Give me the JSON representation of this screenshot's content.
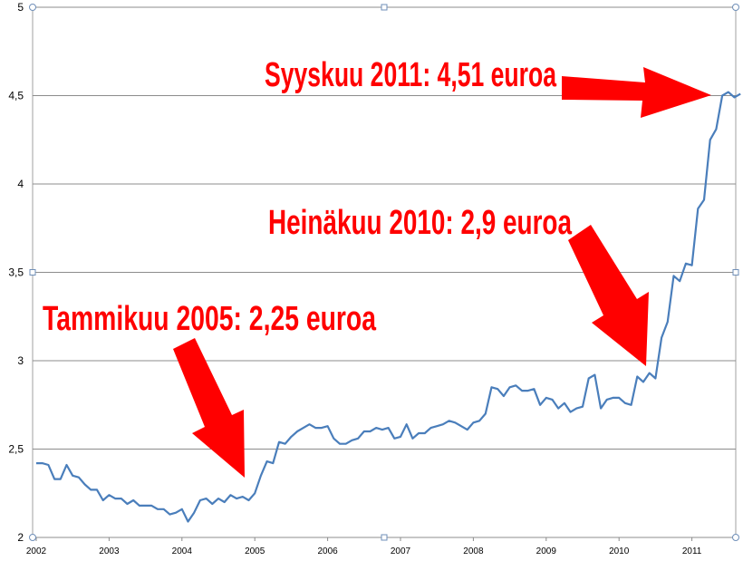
{
  "chart_data": {
    "type": "line",
    "title": "",
    "xlabel": "",
    "ylabel": "",
    "x_ticks": [
      "2002",
      "2003",
      "2004",
      "2005",
      "2006",
      "2007",
      "2008",
      "2009",
      "2010",
      "2011"
    ],
    "y_ticks": [
      "2",
      "2,5",
      "3",
      "3,5",
      "4",
      "4,5",
      "5"
    ],
    "xlim": [
      "2002-01",
      "2011-09"
    ],
    "ylim": [
      2,
      5
    ],
    "grid": true,
    "line_color": "#4a7ebb",
    "annotation_color": "#ff0000",
    "series": [
      {
        "x": [
          "2002-01",
          "2002-02",
          "2002-03",
          "2002-04",
          "2002-05",
          "2002-06",
          "2002-07",
          "2002-08",
          "2002-09",
          "2002-10",
          "2002-11",
          "2002-12",
          "2003-01",
          "2003-02",
          "2003-03",
          "2003-04",
          "2003-05",
          "2003-06",
          "2003-07",
          "2003-08",
          "2003-09",
          "2003-10",
          "2003-11",
          "2003-12",
          "2004-01",
          "2004-02",
          "2004-03",
          "2004-04",
          "2004-05",
          "2004-06",
          "2004-07",
          "2004-08",
          "2004-09",
          "2004-10",
          "2004-11",
          "2004-12",
          "2005-01",
          "2005-02",
          "2005-03",
          "2005-04",
          "2005-05",
          "2005-06",
          "2005-07",
          "2005-08",
          "2005-09",
          "2005-10",
          "2005-11",
          "2005-12",
          "2006-01",
          "2006-02",
          "2006-03",
          "2006-04",
          "2006-05",
          "2006-06",
          "2006-07",
          "2006-08",
          "2006-09",
          "2006-10",
          "2006-11",
          "2006-12",
          "2007-01",
          "2007-02",
          "2007-03",
          "2007-04",
          "2007-05",
          "2007-06",
          "2007-07",
          "2007-08",
          "2007-09",
          "2007-10",
          "2007-11",
          "2007-12",
          "2008-01",
          "2008-02",
          "2008-03",
          "2008-04",
          "2008-05",
          "2008-06",
          "2008-07",
          "2008-08",
          "2008-09",
          "2008-10",
          "2008-11",
          "2008-12",
          "2009-01",
          "2009-02",
          "2009-03",
          "2009-04",
          "2009-05",
          "2009-06",
          "2009-07",
          "2009-08",
          "2009-09",
          "2009-10",
          "2009-11",
          "2009-12",
          "2010-01",
          "2010-02",
          "2010-03",
          "2010-04",
          "2010-05",
          "2010-06",
          "2010-07",
          "2010-08",
          "2010-09",
          "2010-10",
          "2010-11",
          "2010-12",
          "2011-01",
          "2011-02",
          "2011-03",
          "2011-04",
          "2011-05",
          "2011-06",
          "2011-07",
          "2011-08",
          "2011-09"
        ],
        "values": [
          2.42,
          2.42,
          2.41,
          2.33,
          2.33,
          2.41,
          2.35,
          2.34,
          2.3,
          2.27,
          2.27,
          2.21,
          2.24,
          2.22,
          2.22,
          2.19,
          2.21,
          2.18,
          2.18,
          2.18,
          2.16,
          2.16,
          2.13,
          2.14,
          2.16,
          2.09,
          2.14,
          2.21,
          2.22,
          2.19,
          2.22,
          2.2,
          2.24,
          2.22,
          2.23,
          2.21,
          2.25,
          2.35,
          2.43,
          2.42,
          2.54,
          2.53,
          2.57,
          2.6,
          2.62,
          2.64,
          2.62,
          2.62,
          2.63,
          2.56,
          2.53,
          2.53,
          2.55,
          2.56,
          2.6,
          2.6,
          2.62,
          2.61,
          2.62,
          2.56,
          2.57,
          2.64,
          2.56,
          2.59,
          2.59,
          2.62,
          2.63,
          2.64,
          2.66,
          2.65,
          2.63,
          2.61,
          2.65,
          2.66,
          2.7,
          2.85,
          2.84,
          2.8,
          2.85,
          2.86,
          2.83,
          2.83,
          2.84,
          2.75,
          2.79,
          2.78,
          2.73,
          2.76,
          2.71,
          2.73,
          2.74,
          2.9,
          2.92,
          2.73,
          2.78,
          2.79,
          2.79,
          2.76,
          2.75,
          2.91,
          2.88,
          2.93,
          2.9,
          3.13,
          3.22,
          3.48,
          3.45,
          3.55,
          3.54,
          3.86,
          3.91,
          4.25,
          4.31,
          4.5,
          4.52,
          4.49,
          4.51
        ]
      }
    ],
    "annotations": [
      {
        "text": "Syyskuu 2011: 4,51 euroa",
        "x": "2011-09",
        "y": 4.51
      },
      {
        "text": "Heinäkuu 2010: 2,9 euroa",
        "x": "2010-07",
        "y": 2.9
      },
      {
        "text": "Tammikuu 2005: 2,25 euroa",
        "x": "2005-01",
        "y": 2.25
      }
    ]
  }
}
